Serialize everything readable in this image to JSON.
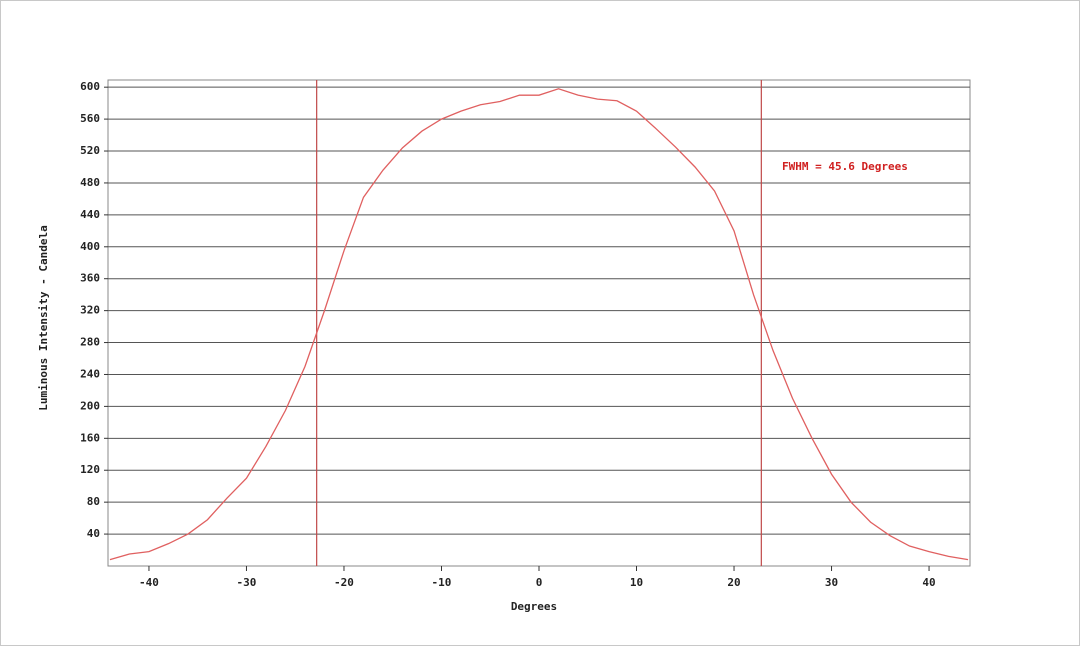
{
  "chart_data": {
    "type": "line",
    "x_label": "Degrees",
    "y_label": "Luminous Intensity - Candela",
    "annotation": "FWHM = 45.6 Degrees",
    "x": [
      -44,
      -42,
      -40,
      -38,
      -36,
      -34,
      -32,
      -30,
      -28,
      -26,
      -24,
      -22,
      -20,
      -18,
      -16,
      -14,
      -12,
      -10,
      -8,
      -6,
      -4,
      -2,
      0,
      2,
      4,
      6,
      8,
      10,
      12,
      14,
      16,
      18,
      20,
      22,
      24,
      26,
      28,
      30,
      32,
      34,
      36,
      38,
      40,
      42,
      44
    ],
    "series": [
      {
        "name": "Intensity",
        "color": "#e06060",
        "values": [
          8,
          15,
          18,
          28,
          40,
          58,
          85,
          110,
          150,
          195,
          250,
          320,
          395,
          462,
          496,
          524,
          545,
          560,
          570,
          578,
          582,
          590,
          590,
          598,
          590,
          585,
          583,
          570,
          548,
          525,
          500,
          470,
          420,
          340,
          270,
          210,
          160,
          115,
          80,
          55,
          38,
          25,
          18,
          12,
          8
        ]
      }
    ],
    "vlines": [
      -22.8,
      22.8
    ],
    "vline_color": "#c04848",
    "xlim": [
      -44.2,
      44.2
    ],
    "xticks": [
      -40,
      -30,
      -20,
      -10,
      0,
      10,
      20,
      30,
      40
    ],
    "ylim": [
      0,
      609
    ],
    "yticks": [
      40,
      80,
      120,
      160,
      200,
      240,
      280,
      320,
      360,
      400,
      440,
      480,
      520,
      560,
      600
    ],
    "grid": true
  }
}
